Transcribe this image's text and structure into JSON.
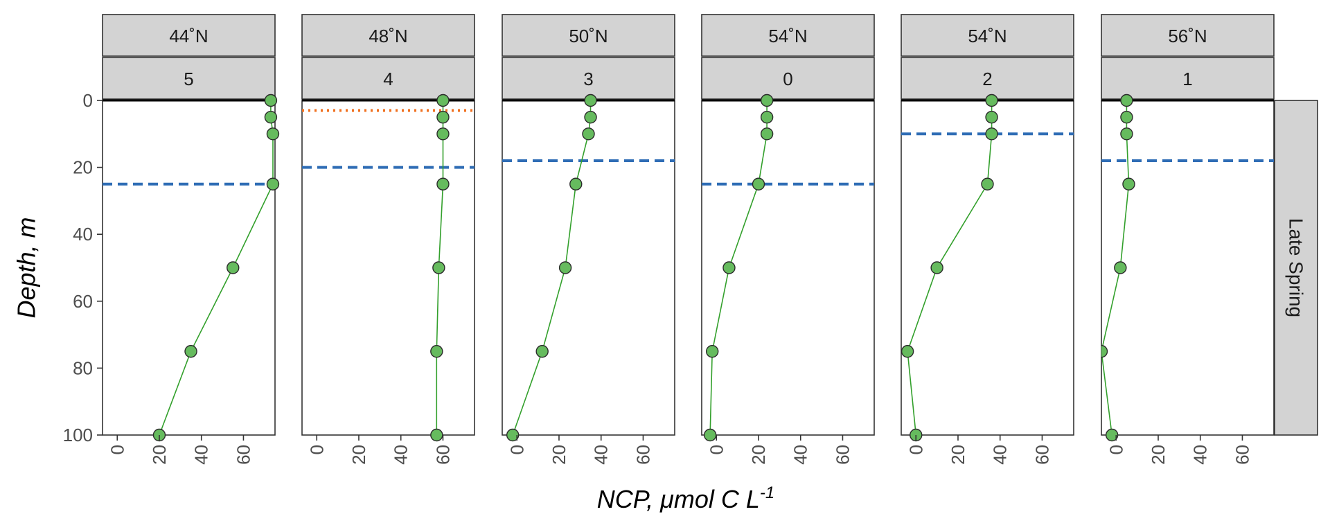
{
  "chart_data": {
    "type": "line",
    "xlabel": "NCP, μmol C L",
    "xlabel_superscript": "-1",
    "ylabel": "Depth, m",
    "x_ticks": [
      0,
      20,
      40,
      60
    ],
    "y_ticks": [
      0,
      20,
      40,
      60,
      80,
      100
    ],
    "xlim": [
      -7,
      75
    ],
    "ylim": [
      100,
      0
    ],
    "y_reversed": true,
    "grid": false,
    "row_strip": "Late Spring",
    "colors": {
      "series_line": "#33a02c",
      "series_point": "#66bb5e",
      "mixed_layer_dashed": "#2f6db5",
      "dotted_reference": "#f07020",
      "strip_background": "#d3d3d3"
    },
    "panels": [
      {
        "lat_label": "44˚N",
        "station_label": "5",
        "depths": [
          0,
          5,
          10,
          25,
          50,
          75,
          100
        ],
        "ncp": [
          73,
          73,
          74,
          74,
          55,
          35,
          20
        ],
        "dashed_depth": 25,
        "dotted_depth": null
      },
      {
        "lat_label": "48˚N",
        "station_label": "4",
        "depths": [
          0,
          5,
          10,
          25,
          50,
          75,
          100
        ],
        "ncp": [
          60,
          60,
          60,
          60,
          58,
          57,
          57
        ],
        "dashed_depth": 20,
        "dotted_depth": 3
      },
      {
        "lat_label": "50˚N",
        "station_label": "3",
        "depths": [
          0,
          5,
          10,
          25,
          50,
          75,
          100
        ],
        "ncp": [
          35,
          35,
          34,
          28,
          23,
          12,
          -2
        ],
        "dashed_depth": 18,
        "dotted_depth": null
      },
      {
        "lat_label": "54˚N",
        "station_label": "0",
        "depths": [
          0,
          5,
          10,
          25,
          50,
          75,
          100
        ],
        "ncp": [
          24,
          24,
          24,
          20,
          6,
          -2,
          -3
        ],
        "dashed_depth": 25,
        "dotted_depth": null
      },
      {
        "lat_label": "54˚N",
        "station_label": "2",
        "depths": [
          0,
          5,
          10,
          25,
          50,
          75,
          100
        ],
        "ncp": [
          36,
          36,
          36,
          34,
          10,
          -4,
          0
        ],
        "dashed_depth": 10,
        "dotted_depth": null
      },
      {
        "lat_label": "56˚N",
        "station_label": "1",
        "depths": [
          0,
          5,
          10,
          25,
          50,
          75,
          100
        ],
        "ncp": [
          5,
          5,
          5,
          6,
          2,
          -7,
          -2
        ],
        "dashed_depth": 18,
        "dotted_depth": null
      }
    ]
  }
}
